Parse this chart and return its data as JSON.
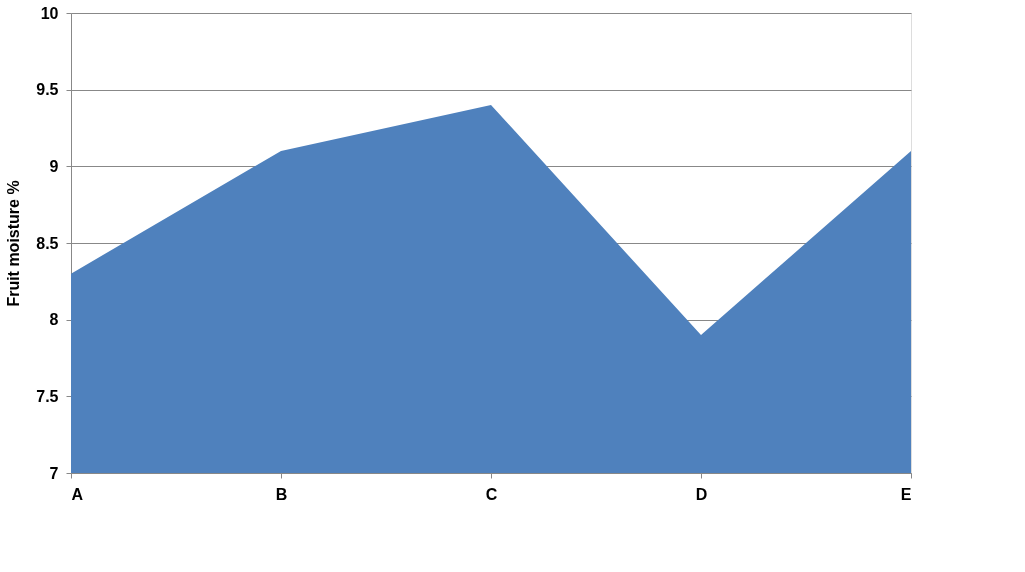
{
  "chart_data": {
    "type": "area",
    "ylabel": "Fruit moisture %",
    "categories": [
      "A",
      "B",
      "C",
      "D",
      "E"
    ],
    "series": [
      {
        "color": "#4f81bd",
        "values": [
          8.3,
          9.1,
          9.4,
          7.9,
          9.1
        ]
      }
    ],
    "ylim": [
      7,
      10
    ],
    "yticks": [
      7,
      7.5,
      8,
      8.5,
      9,
      9.5,
      10
    ],
    "grid": "y",
    "legend": false
  }
}
